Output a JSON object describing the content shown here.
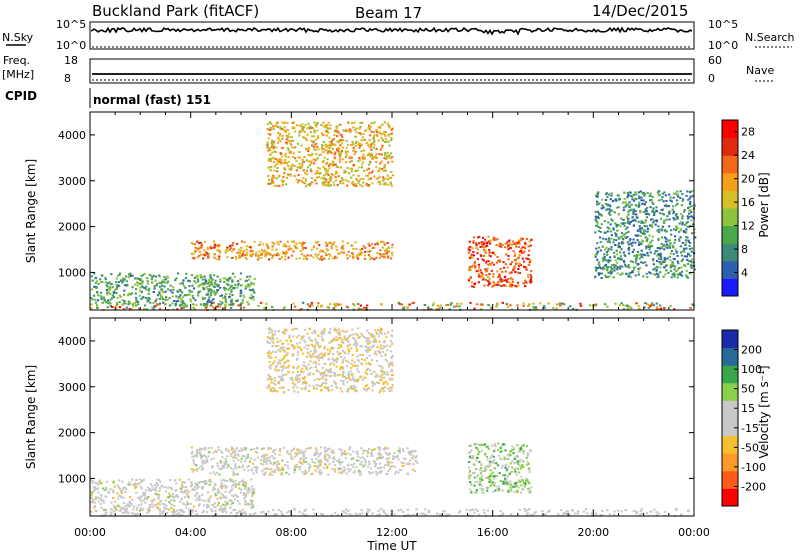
{
  "header": {
    "station": "Buckland Park (fitACF)",
    "beam": "Beam 17",
    "date": "14/Dec/2015"
  },
  "strip": {
    "nsky_label": "N.Sky",
    "nsky_ticks": [
      "10^5",
      "10^0"
    ],
    "nsearch_label": "N.Search",
    "nsearch_ticks": [
      "10^5",
      "10^0"
    ],
    "freq_label": "Freq.",
    "freq_unit": "[MHz]",
    "freq_ticks": [
      "18",
      "8"
    ],
    "nave_label": "Nave",
    "nave_ticks": [
      "60",
      "0"
    ],
    "cpid_label": "CPID",
    "cpid_value": "normal (fast) 151"
  },
  "colors": {
    "power": [
      "#1a1aff",
      "#2a5fb0",
      "#3d8a7a",
      "#4aaa4a",
      "#8cc43c",
      "#d6c02a",
      "#f5a018",
      "#f06818",
      "#e02a10",
      "#ff0000"
    ],
    "velocity": [
      "#ff0000",
      "#ff5a1a",
      "#ff9a2a",
      "#f5c030",
      "#c8c8c8",
      "#c8c8c8",
      "#8ad04a",
      "#3aa84a",
      "#2a6a9a",
      "#1a2aa8"
    ]
  },
  "chart_data": [
    {
      "type": "heatmap",
      "title": "",
      "xlabel": "",
      "ylabel": "Slant Range [km]",
      "xlim": [
        "00:00",
        "00:00"
      ],
      "ylim": [
        180,
        4500
      ],
      "x_ticks": [
        "00:00",
        "04:00",
        "08:00",
        "12:00",
        "16:00",
        "20:00",
        "00:00"
      ],
      "y_ticks": [
        "1000",
        "2000",
        "3000",
        "4000"
      ],
      "colorbar": {
        "label": "Power [dB]",
        "range": [
          0,
          30
        ],
        "ticks": [
          "4",
          "8",
          "12",
          "16",
          "20",
          "24",
          "28"
        ]
      },
      "features": [
        {
          "time_h": [
            0.0,
            6.5
          ],
          "range_km": [
            300,
            1000
          ],
          "value_db": 10
        },
        {
          "time_h": [
            4.0,
            12.0
          ],
          "range_km": [
            1300,
            1700
          ],
          "value_db": 20
        },
        {
          "time_h": [
            7.0,
            12.0
          ],
          "range_km": [
            2900,
            4300
          ],
          "value_db": 18
        },
        {
          "time_h": [
            15.0,
            17.5
          ],
          "range_km": [
            700,
            1800
          ],
          "value_db": 24
        },
        {
          "time_h": [
            20.0,
            24.0
          ],
          "range_km": [
            900,
            2800
          ],
          "value_db": 8
        }
      ]
    },
    {
      "type": "heatmap",
      "title": "",
      "xlabel": "Time UT",
      "ylabel": "Slant Range [km]",
      "xlim": [
        "00:00",
        "00:00"
      ],
      "ylim": [
        180,
        4500
      ],
      "x_ticks": [
        "00:00",
        "04:00",
        "08:00",
        "12:00",
        "16:00",
        "20:00",
        "00:00"
      ],
      "y_ticks": [
        "1000",
        "2000",
        "3000",
        "4000"
      ],
      "colorbar": {
        "label": "Velocity [m s⁻¹]",
        "range": [
          -250,
          250
        ],
        "ticks": [
          "200",
          "100",
          "50",
          "15",
          "-15",
          "-50",
          "-100",
          "-200"
        ]
      },
      "features": [
        {
          "time_h": [
            0.0,
            6.5
          ],
          "range_km": [
            300,
            1000
          ],
          "value_ms": 0
        },
        {
          "time_h": [
            4.0,
            13.0
          ],
          "range_km": [
            1100,
            1700
          ],
          "value_ms": 0
        },
        {
          "time_h": [
            15.0,
            17.5
          ],
          "range_km": [
            700,
            1800
          ],
          "value_ms": 60
        },
        {
          "time_h": [
            7.0,
            12.0
          ],
          "range_km": [
            2900,
            4300
          ],
          "value_ms": -40
        }
      ]
    }
  ]
}
